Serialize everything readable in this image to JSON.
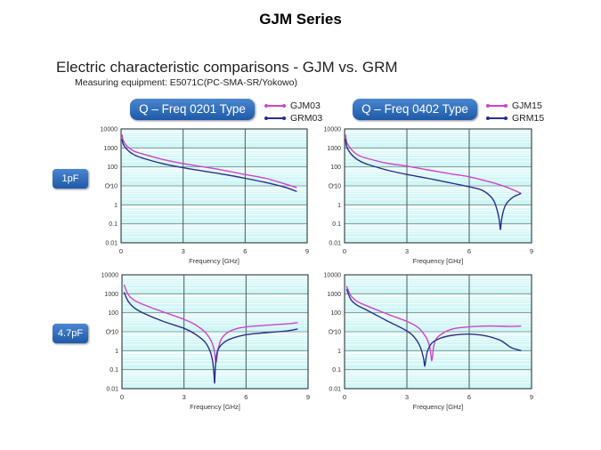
{
  "slide_title": "GJM Series",
  "heading": "Electric characteristic comparisons - GJM vs. GRM",
  "subheading": "Measuring equipment:  E5071C(PC-SMA-SR/Yokowo)",
  "column_headers": [
    "Q – Freq   0201 Type",
    "Q – Freq   0402 Type"
  ],
  "row_labels": [
    "1pF",
    "4.7pF"
  ],
  "legends": [
    [
      {
        "name": "GJM03",
        "color": "#cc44cc"
      },
      {
        "name": "GRM03",
        "color": "#2a2f8a"
      }
    ],
    [
      {
        "name": "GJM15",
        "color": "#cc44cc"
      },
      {
        "name": "GRM15",
        "color": "#2a2f8a"
      }
    ]
  ],
  "colors": {
    "gjm": "#cc44cc",
    "grm": "#2a2f8a",
    "plot_bg": "#d2f6f6"
  },
  "chart_data": [
    {
      "type": "line",
      "title": "Q – Freq 0201 Type, 1pF",
      "xlabel": "Frequency [GHz]",
      "ylabel": "Q",
      "xlim": [
        0,
        9
      ],
      "ylim": [
        0.01,
        10000
      ],
      "yscale": "log",
      "xticks": [
        "0",
        "3",
        "6",
        "9"
      ],
      "yticks": [
        "10000",
        "1000",
        "100",
        "10",
        "1",
        "0.1",
        "0.01"
      ],
      "grid": true,
      "series": [
        {
          "name": "GJM03",
          "x": [
            0.05,
            0.1,
            0.3,
            0.6,
            1,
            2,
            3,
            4,
            5,
            6,
            7,
            8,
            8.5
          ],
          "y": [
            5000,
            2500,
            1200,
            700,
            500,
            250,
            150,
            100,
            65,
            40,
            25,
            12,
            8
          ]
        },
        {
          "name": "GRM03",
          "x": [
            0.05,
            0.1,
            0.3,
            0.6,
            1,
            2,
            3,
            4,
            5,
            6,
            7,
            8,
            8.5
          ],
          "y": [
            3000,
            1600,
            800,
            450,
            300,
            150,
            90,
            60,
            40,
            25,
            15,
            8,
            5
          ]
        }
      ]
    },
    {
      "type": "line",
      "title": "Q – Freq 0402 Type, 1pF",
      "xlabel": "Frequency [GHz]",
      "ylabel": "Q",
      "xlim": [
        0,
        9
      ],
      "ylim": [
        0.01,
        10000
      ],
      "yscale": "log",
      "xticks": [
        "0",
        "3",
        "6",
        "9"
      ],
      "yticks": [
        "10000",
        "1000",
        "100",
        "10",
        "1",
        "0.1",
        "0.01"
      ],
      "grid": true,
      "series": [
        {
          "name": "GJM15",
          "x": [
            0.05,
            0.1,
            0.3,
            0.6,
            1,
            2,
            3,
            4,
            5,
            6,
            7,
            7.5,
            8,
            8.5
          ],
          "y": [
            5000,
            2000,
            900,
            450,
            300,
            160,
            110,
            70,
            45,
            30,
            16,
            11,
            7,
            4
          ]
        },
        {
          "name": "GRM15",
          "x": [
            0.05,
            0.1,
            0.3,
            0.6,
            1,
            2,
            3,
            4,
            5,
            6,
            6.6,
            7,
            7.2,
            7.35,
            7.45,
            7.5,
            7.55,
            7.65,
            7.8,
            8.1,
            8.5
          ],
          "y": [
            3000,
            1200,
            500,
            250,
            150,
            70,
            40,
            25,
            15,
            9,
            6,
            3,
            1.5,
            0.5,
            0.15,
            0.05,
            0.15,
            0.5,
            1.2,
            2.5,
            4
          ]
        }
      ]
    },
    {
      "type": "line",
      "title": "Q – Freq 0201 Type, 4.7pF",
      "xlabel": "Frequency [GHz]",
      "ylabel": "Q",
      "xlim": [
        0,
        9
      ],
      "ylim": [
        0.01,
        10000
      ],
      "yscale": "log",
      "xticks": [
        "0",
        "3",
        "6",
        "9"
      ],
      "yticks": [
        "10000",
        "1000",
        "100",
        "10",
        "1",
        "0.1",
        "0.01"
      ],
      "grid": true,
      "series": [
        {
          "name": "GJM",
          "x": [
            0.1,
            0.3,
            0.6,
            1,
            2,
            3,
            3.5,
            4,
            4.3,
            4.45,
            4.55,
            4.65,
            4.8,
            5.1,
            5.5,
            6,
            7,
            8,
            8.5
          ],
          "y": [
            3000,
            900,
            450,
            280,
            110,
            45,
            25,
            10,
            3.5,
            1.2,
            0.25,
            1.2,
            4,
            9,
            14,
            18,
            22,
            26,
            30
          ]
        },
        {
          "name": "GRM",
          "x": [
            0.1,
            0.3,
            0.6,
            1,
            2,
            3,
            3.5,
            4,
            4.25,
            4.38,
            4.45,
            4.48,
            4.52,
            4.6,
            4.8,
            5.2,
            6,
            7,
            8,
            8.5
          ],
          "y": [
            1200,
            400,
            180,
            100,
            35,
            15,
            8,
            3,
            1,
            0.3,
            0.06,
            0.02,
            0.15,
            0.8,
            2,
            4,
            7,
            9,
            11,
            14
          ]
        }
      ]
    },
    {
      "type": "line",
      "title": "Q – Freq 0402 Type, 4.7pF",
      "xlabel": "Frequency [GHz]",
      "ylabel": "Q",
      "xlim": [
        0,
        9
      ],
      "ylim": [
        0.01,
        10000
      ],
      "yscale": "log",
      "xticks": [
        "0",
        "3",
        "6",
        "9"
      ],
      "yticks": [
        "10000",
        "1000",
        "100",
        "10",
        "1",
        "0.1",
        "0.01"
      ],
      "grid": true,
      "series": [
        {
          "name": "GJM",
          "x": [
            0.1,
            0.3,
            0.6,
            1,
            2,
            3,
            3.5,
            3.8,
            4,
            4.12,
            4.2,
            4.28,
            4.4,
            4.7,
            5.2,
            6,
            7,
            8,
            8.5
          ],
          "y": [
            2500,
            800,
            400,
            250,
            90,
            35,
            18,
            8,
            3.5,
            1.2,
            0.3,
            1.5,
            4,
            8,
            14,
            18,
            20,
            19,
            20
          ]
        },
        {
          "name": "GRM",
          "x": [
            0.1,
            0.3,
            0.6,
            1,
            2,
            3,
            3.4,
            3.65,
            3.8,
            3.86,
            3.92,
            4,
            4.2,
            4.6,
            5.2,
            6,
            6.8,
            7.5,
            8,
            8.5
          ],
          "y": [
            1800,
            500,
            250,
            150,
            40,
            11,
            4.5,
            1.5,
            0.4,
            0.15,
            0.4,
            1,
            2.5,
            4.5,
            6.5,
            7.5,
            6,
            3.5,
            1.5,
            1
          ]
        }
      ]
    }
  ]
}
